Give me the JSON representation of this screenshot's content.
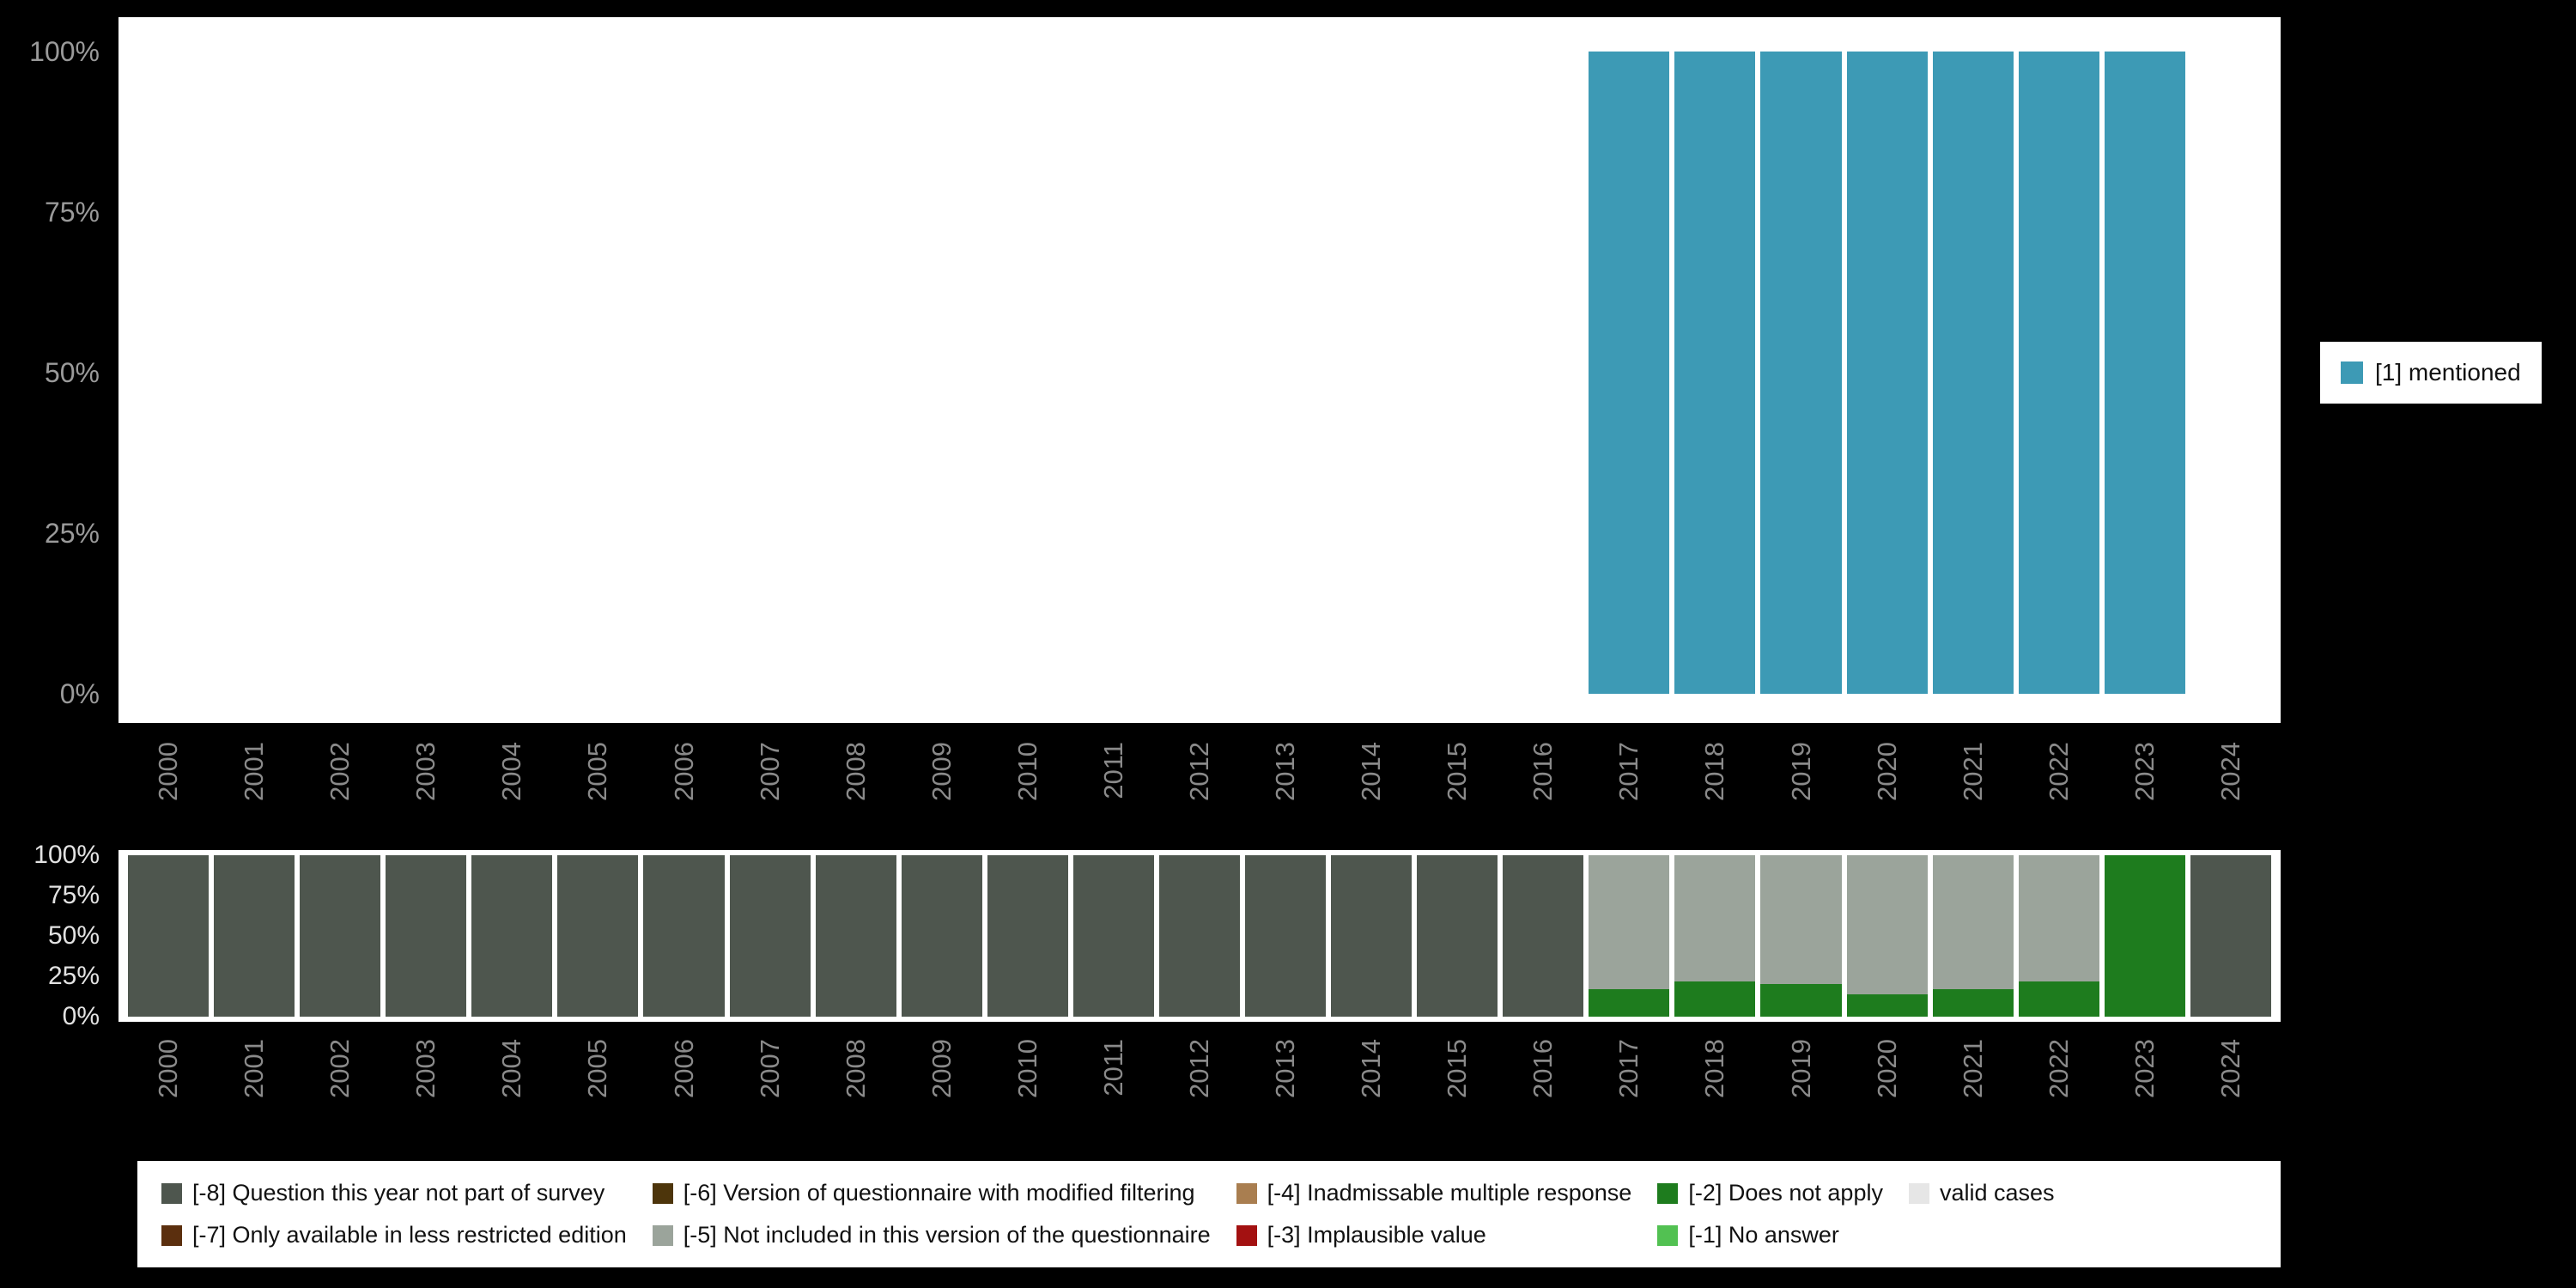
{
  "chart_data": [
    {
      "type": "bar",
      "title": "",
      "xlabel": "",
      "ylabel": "",
      "ylim": [
        0,
        100
      ],
      "grid": false,
      "y_ticks": [
        "100%",
        "75%",
        "50%",
        "25%",
        "0%"
      ],
      "categories": [
        "2000",
        "2001",
        "2002",
        "2003",
        "2004",
        "2005",
        "2006",
        "2007",
        "2008",
        "2009",
        "2010",
        "2011",
        "2012",
        "2013",
        "2014",
        "2015",
        "2016",
        "2017",
        "2018",
        "2019",
        "2020",
        "2021",
        "2022",
        "2023",
        "2024"
      ],
      "series": [
        {
          "name": "[1] mentioned",
          "color": "#3d9ab5",
          "values": [
            0,
            0,
            0,
            0,
            0,
            0,
            0,
            0,
            0,
            0,
            0,
            0,
            0,
            0,
            0,
            0,
            0,
            100,
            100,
            100,
            100,
            100,
            100,
            100,
            0
          ]
        }
      ],
      "legend_position": "right"
    },
    {
      "type": "bar",
      "subtype": "stacked",
      "title": "",
      "xlabel": "",
      "ylabel": "",
      "ylim": [
        0,
        100
      ],
      "grid": false,
      "y_ticks": [
        "100%",
        "75%",
        "50%",
        "25%",
        "0%"
      ],
      "categories": [
        "2000",
        "2001",
        "2002",
        "2003",
        "2004",
        "2005",
        "2006",
        "2007",
        "2008",
        "2009",
        "2010",
        "2011",
        "2012",
        "2013",
        "2014",
        "2015",
        "2016",
        "2017",
        "2018",
        "2019",
        "2020",
        "2021",
        "2022",
        "2023",
        "2024"
      ],
      "bars": [
        {
          "year": "2000",
          "stacks": [
            {
              "code": "-8",
              "value": 100
            }
          ]
        },
        {
          "year": "2001",
          "stacks": [
            {
              "code": "-8",
              "value": 100
            }
          ]
        },
        {
          "year": "2002",
          "stacks": [
            {
              "code": "-8",
              "value": 100
            }
          ]
        },
        {
          "year": "2003",
          "stacks": [
            {
              "code": "-8",
              "value": 100
            }
          ]
        },
        {
          "year": "2004",
          "stacks": [
            {
              "code": "-8",
              "value": 100
            }
          ]
        },
        {
          "year": "2005",
          "stacks": [
            {
              "code": "-8",
              "value": 100
            }
          ]
        },
        {
          "year": "2006",
          "stacks": [
            {
              "code": "-8",
              "value": 100
            }
          ]
        },
        {
          "year": "2007",
          "stacks": [
            {
              "code": "-8",
              "value": 100
            }
          ]
        },
        {
          "year": "2008",
          "stacks": [
            {
              "code": "-8",
              "value": 100
            }
          ]
        },
        {
          "year": "2009",
          "stacks": [
            {
              "code": "-8",
              "value": 100
            }
          ]
        },
        {
          "year": "2010",
          "stacks": [
            {
              "code": "-8",
              "value": 100
            }
          ]
        },
        {
          "year": "2011",
          "stacks": [
            {
              "code": "-8",
              "value": 100
            }
          ]
        },
        {
          "year": "2012",
          "stacks": [
            {
              "code": "-8",
              "value": 100
            }
          ]
        },
        {
          "year": "2013",
          "stacks": [
            {
              "code": "-8",
              "value": 100
            }
          ]
        },
        {
          "year": "2014",
          "stacks": [
            {
              "code": "-8",
              "value": 100
            }
          ]
        },
        {
          "year": "2015",
          "stacks": [
            {
              "code": "-8",
              "value": 100
            }
          ]
        },
        {
          "year": "2016",
          "stacks": [
            {
              "code": "-8",
              "value": 100
            }
          ]
        },
        {
          "year": "2017",
          "stacks": [
            {
              "code": "-2",
              "value": 17
            },
            {
              "code": "-5",
              "value": 83
            }
          ]
        },
        {
          "year": "2018",
          "stacks": [
            {
              "code": "-2",
              "value": 22
            },
            {
              "code": "-5",
              "value": 78
            }
          ]
        },
        {
          "year": "2019",
          "stacks": [
            {
              "code": "-2",
              "value": 20
            },
            {
              "code": "-5",
              "value": 80
            }
          ]
        },
        {
          "year": "2020",
          "stacks": [
            {
              "code": "-2",
              "value": 14
            },
            {
              "code": "-5",
              "value": 86
            }
          ]
        },
        {
          "year": "2021",
          "stacks": [
            {
              "code": "-2",
              "value": 17
            },
            {
              "code": "-5",
              "value": 83
            }
          ]
        },
        {
          "year": "2022",
          "stacks": [
            {
              "code": "-2",
              "value": 22
            },
            {
              "code": "-5",
              "value": 78
            }
          ]
        },
        {
          "year": "2023",
          "stacks": [
            {
              "code": "-2",
              "value": 100
            }
          ]
        },
        {
          "year": "2024",
          "stacks": [
            {
              "code": "-8",
              "value": 100
            }
          ]
        }
      ],
      "legend_position": "bottom"
    }
  ],
  "code_colors": {
    "-8": "#4e564e",
    "-7": "#5b2f0e",
    "-6": "#4d350b",
    "-5": "#9ba49b",
    "-4": "#a97e50",
    "-3": "#a31111",
    "-2": "#1e7c1e",
    "-1": "#52c152",
    "valid": "#e6e6e6"
  },
  "right_legend": {
    "items": [
      {
        "label": "[1] mentioned",
        "color": "#3d9ab5"
      }
    ]
  },
  "bottom_legend": {
    "items": [
      {
        "code": "-8",
        "label": "[-8] Question this year not part of survey"
      },
      {
        "code": "-7",
        "label": "[-7] Only available in less restricted edition"
      },
      {
        "code": "-6",
        "label": "[-6] Version of questionnaire with modified filtering"
      },
      {
        "code": "-5",
        "label": "[-5] Not included in this version of the questionnaire"
      },
      {
        "code": "-4",
        "label": "[-4] Inadmissable multiple response"
      },
      {
        "code": "-3",
        "label": "[-3] Implausible value"
      },
      {
        "code": "-2",
        "label": "[-2] Does not apply"
      },
      {
        "code": "-1",
        "label": "[-1] No answer"
      },
      {
        "code": "valid",
        "label": "valid cases"
      }
    ]
  }
}
